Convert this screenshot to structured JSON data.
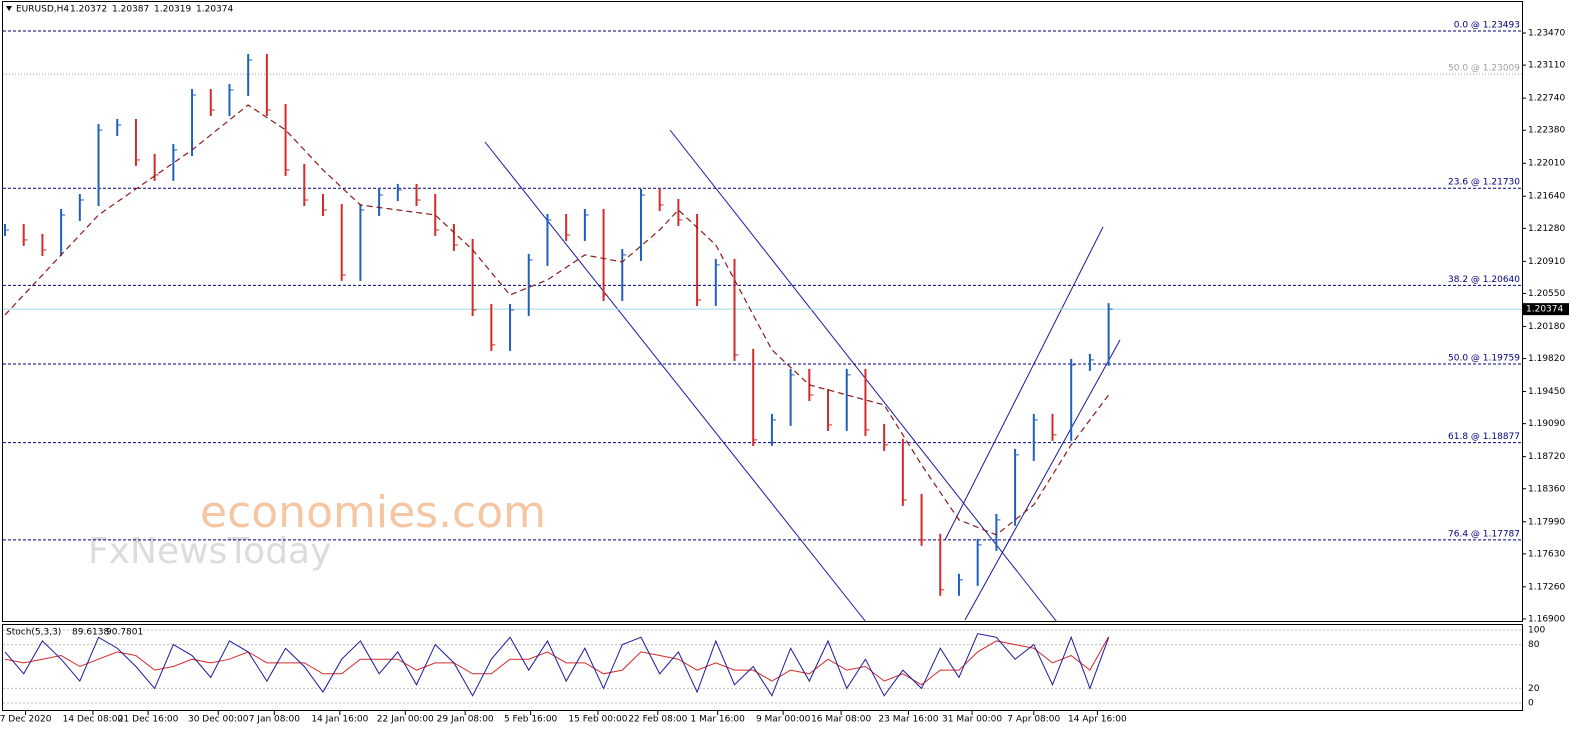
{
  "chart_data": {
    "type": "ohlc",
    "symbol": "EURUSD,H4",
    "ohlc": [
      1.20372,
      1.20387,
      1.20319,
      1.20374
    ],
    "xlim": [
      0,
      81.1
    ],
    "ylim": [
      1.16866,
      1.23818
    ],
    "yticks": [
      {
        "value": 1.2347,
        "label": "1.23470"
      },
      {
        "value": 1.2311,
        "label": "1.23110"
      },
      {
        "value": 1.2274,
        "label": "1.22740"
      },
      {
        "value": 1.2238,
        "label": "1.22380"
      },
      {
        "value": 1.2201,
        "label": "1.22010"
      },
      {
        "value": 1.2164,
        "label": "1.21640"
      },
      {
        "value": 1.2128,
        "label": "1.21280"
      },
      {
        "value": 1.2091,
        "label": "1.20910"
      },
      {
        "value": 1.2055,
        "label": "1.20550"
      },
      {
        "value": 1.2018,
        "label": "1.20180"
      },
      {
        "value": 1.1982,
        "label": "1.19820"
      },
      {
        "value": 1.1945,
        "label": "1.19450"
      },
      {
        "value": 1.1909,
        "label": "1.19090"
      },
      {
        "value": 1.1872,
        "label": "1.18720"
      },
      {
        "value": 1.1836,
        "label": "1.18360"
      },
      {
        "value": 1.1799,
        "label": "1.17990"
      },
      {
        "value": 1.1763,
        "label": "1.17630"
      },
      {
        "value": 1.1726,
        "label": "1.17260"
      },
      {
        "value": 1.169,
        "label": "1.16900"
      }
    ],
    "xticks": [
      {
        "value": 1.1,
        "label": "7 Dec 2020"
      },
      {
        "value": 4.7,
        "label": "14 Dec 08:00"
      },
      {
        "value": 7.65,
        "label": "21 Dec 16:00"
      },
      {
        "value": 11.4,
        "label": "30 Dec 00:00"
      },
      {
        "value": 14.4,
        "label": "7 Jan 08:00"
      },
      {
        "value": 17.9,
        "label": "14 Jan 16:00"
      },
      {
        "value": 21.4,
        "label": "22 Jan 00:00"
      },
      {
        "value": 24.6,
        "label": "29 Jan 08:00"
      },
      {
        "value": 28.1,
        "label": "5 Feb 16:00"
      },
      {
        "value": 31.7,
        "label": "15 Feb 00:00"
      },
      {
        "value": 34.9,
        "label": "22 Feb 08:00"
      },
      {
        "value": 38.1,
        "label": "1 Mar 16:00"
      },
      {
        "value": 41.6,
        "label": "9 Mar 00:00"
      },
      {
        "value": 44.7,
        "label": "16 Mar 08:00"
      },
      {
        "value": 48.3,
        "label": "23 Mar 16:00"
      },
      {
        "value": 51.7,
        "label": "31 Mar 00:00"
      },
      {
        "value": 55.0,
        "label": "7 Apr 08:00"
      },
      {
        "value": 58.4,
        "label": "14 Apr 16:00"
      }
    ],
    "close": [
      1.21262,
      1.2115,
      1.21038,
      1.2143,
      1.21598,
      1.22383,
      1.22439,
      1.22047,
      1.21879,
      1.22159,
      1.22775,
      1.22607,
      1.22832,
      1.23168,
      1.22607,
      1.21935,
      1.21598,
      1.21486,
      1.20758,
      1.21486,
      1.21654,
      1.21711,
      1.21598,
      1.21262,
      1.21094,
      1.20365,
      1.19973,
      1.20365,
      1.20926,
      1.21374,
      1.21206,
      1.2143,
      1.20533,
      1.20982,
      1.21654,
      1.21542,
      1.21374,
      1.20477,
      1.2087,
      1.19861,
      1.18908,
      1.19132,
      1.19637,
      1.19412,
      1.19076,
      1.19637,
      1.1902,
      1.18852,
      1.18235,
      1.17787,
      1.17227,
      1.17339,
      1.17731,
      1.18011,
      1.1874,
      1.19132,
      1.18964,
      1.19749,
      1.19805,
      1.20374
    ],
    "up_color": "#1f5fbf",
    "down_color": "#d42a2a",
    "ma": {
      "color": "#8b1a1a",
      "x": [
        0,
        5,
        10,
        13,
        15,
        17,
        19,
        21,
        23,
        25,
        27,
        29,
        31,
        33,
        35,
        36,
        38,
        39,
        41,
        43,
        45,
        47,
        49,
        51,
        53,
        55,
        57,
        59
      ],
      "values": [
        1.20309,
        1.2143,
        1.22159,
        1.22663,
        1.22383,
        1.21935,
        1.21542,
        1.21486,
        1.2143,
        1.21038,
        1.20533,
        1.20702,
        1.20982,
        1.20903,
        1.21262,
        1.21486,
        1.21094,
        1.20702,
        1.19917,
        1.19525,
        1.19412,
        1.193,
        1.18628,
        1.18011,
        1.17843,
        1.18179,
        1.18852,
        1.19412
      ]
    },
    "current_price": 1.20374,
    "fib_levels": [
      {
        "label": "0.0 @ 1.23493",
        "value": 1.23493,
        "color": "#000080"
      },
      {
        "label": "50.0 @ 1.23009",
        "value": 1.23009,
        "color": "#a0a0a0"
      },
      {
        "label": "23.6 @ 1.21730",
        "value": 1.2173,
        "color": "#000080"
      },
      {
        "label": "38.2 @ 1.20640",
        "value": 1.2064,
        "color": "#000080"
      },
      {
        "label": "50.0 @ 1.19759",
        "value": 1.19759,
        "color": "#000080"
      },
      {
        "label": "61.8 @ 1.18877",
        "value": 1.18877,
        "color": "#000080"
      },
      {
        "label": "76.4 @ 1.17787",
        "value": 1.17787,
        "color": "#000080"
      }
    ],
    "stoch": {
      "label": "Stoch(5,3,3)",
      "ylim": [
        0,
        100
      ],
      "yticks": [
        100,
        80,
        20,
        0
      ],
      "main_color": "#1a1aa0",
      "signal_color": "#d42a2a",
      "main": [
        70,
        40,
        85,
        60,
        30,
        90,
        75,
        50,
        20,
        80,
        65,
        35,
        85,
        70,
        30,
        75,
        50,
        15,
        60,
        85,
        40,
        70,
        25,
        80,
        55,
        10,
        60,
        90,
        45,
        85,
        30,
        75,
        20,
        80,
        90,
        40,
        70,
        15,
        85,
        25,
        50,
        10,
        75,
        30,
        85,
        20,
        60,
        10,
        45,
        20,
        75,
        35,
        95,
        90,
        60,
        80,
        25,
        90,
        20,
        89.6138
      ],
      "signal": [
        60,
        55,
        60,
        65,
        50,
        60,
        70,
        65,
        45,
        50,
        60,
        55,
        60,
        70,
        55,
        55,
        55,
        40,
        40,
        60,
        60,
        60,
        45,
        55,
        55,
        40,
        40,
        60,
        60,
        70,
        55,
        55,
        40,
        45,
        70,
        65,
        60,
        45,
        55,
        45,
        45,
        30,
        45,
        40,
        60,
        45,
        50,
        30,
        40,
        25,
        45,
        45,
        70,
        85,
        80,
        75,
        55,
        65,
        45,
        90.7801
      ]
    },
    "watermark": [
      "economies.com",
      "FxNewsToday"
    ]
  }
}
